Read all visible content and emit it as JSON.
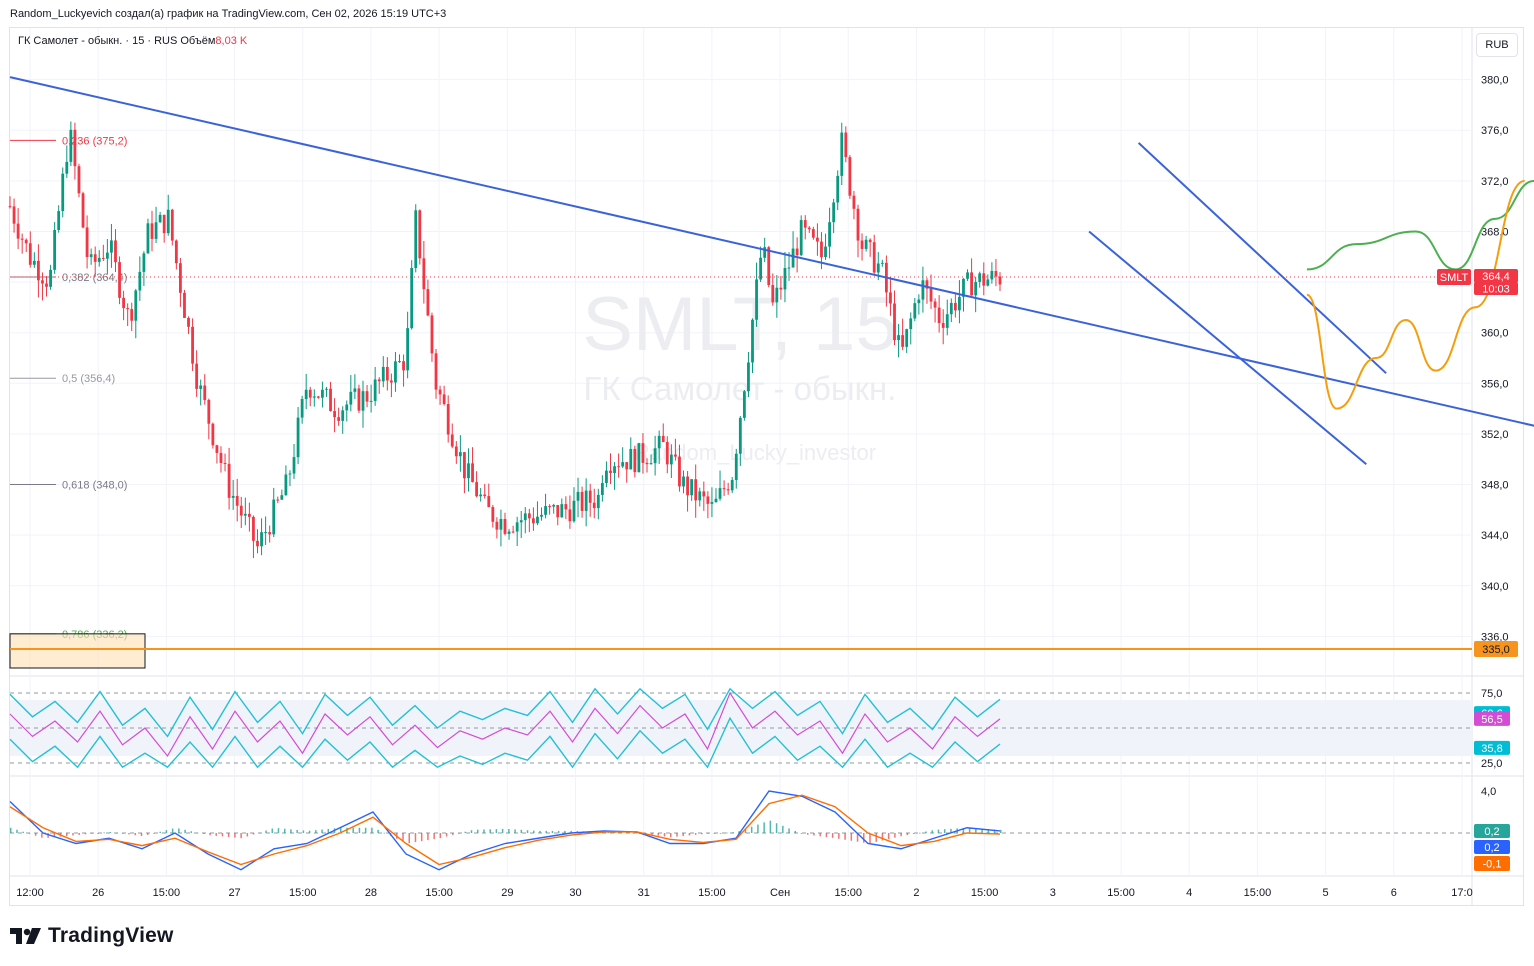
{
  "caption": "Random_Luckyevich создал(а) график на TradingView.com, Сен 02, 2026 15:19 UTC+3",
  "legend": {
    "symbol": "ГК Самолет - обыкн. · 15 · RUS",
    "volume_label": "Объём",
    "volume_value": "8,03 K"
  },
  "currency_button": "RUB",
  "brand": "TradingView",
  "watermark": {
    "ticker": "SMLT, 15",
    "name": "ГК Самолет - обыкн.",
    "author": "Random_Lucky_investor"
  },
  "colors": {
    "up": "#089981",
    "down": "#f23645",
    "trendline": "#3b63d9",
    "support": "#f7941d",
    "green_path": "#4caf50",
    "orange_path": "#f59e0b",
    "rsi": "#d44bd6",
    "channel": "#22c1d6",
    "macd": "#2962ff",
    "signal": "#ff6d00"
  },
  "chart_data": [
    {
      "type": "candlestick",
      "title": "ГК Самолет - обыкн. · 15 · RUS",
      "ylim": [
        333.5,
        382.5
      ],
      "y_ticks": [
        "380,0",
        "376,0",
        "372,0",
        "368,0",
        "364,0",
        "360,0",
        "356,0",
        "352,0",
        "348,0",
        "344,0",
        "340,0",
        "336,0"
      ],
      "x_ticks": [
        "12:00",
        "26",
        "15:00",
        "27",
        "15:00",
        "28",
        "15:00",
        "29",
        "30",
        "31",
        "15:00",
        "Сен",
        "15:00",
        "2",
        "15:00",
        "3",
        "15:00",
        "4",
        "15:00",
        "5",
        "6",
        "17:0"
      ],
      "price_path": [
        [
          0,
          370
        ],
        [
          0.02,
          366
        ],
        [
          0.04,
          364
        ],
        [
          0.06,
          376
        ],
        [
          0.08,
          365
        ],
        [
          0.1,
          367
        ],
        [
          0.12,
          361
        ],
        [
          0.14,
          368
        ],
        [
          0.16,
          369
        ],
        [
          0.19,
          356
        ],
        [
          0.22,
          348
        ],
        [
          0.25,
          343
        ],
        [
          0.28,
          348
        ],
        [
          0.3,
          356
        ],
        [
          0.33,
          354
        ],
        [
          0.36,
          355
        ],
        [
          0.4,
          358
        ],
        [
          0.41,
          369
        ],
        [
          0.43,
          356
        ],
        [
          0.46,
          349
        ],
        [
          0.475,
          347
        ],
        [
          0.48,
          346
        ],
        [
          0.5,
          345
        ],
        [
          0.53,
          345.5
        ],
        [
          0.56,
          346
        ],
        [
          0.595,
          347
        ],
        [
          0.6,
          350
        ],
        [
          0.63,
          350
        ],
        [
          0.66,
          351
        ],
        [
          0.68,
          348
        ],
        [
          0.71,
          346
        ],
        [
          0.73,
          349
        ],
        [
          0.76,
          367
        ],
        [
          0.77,
          362
        ],
        [
          0.8,
          368
        ],
        [
          0.82,
          366
        ],
        [
          0.84,
          375
        ],
        [
          0.86,
          367
        ],
        [
          0.88,
          365
        ],
        [
          0.9,
          358
        ],
        [
          0.92,
          364
        ],
        [
          0.94,
          361
        ],
        [
          0.96,
          363
        ],
        [
          0.97,
          364
        ],
        [
          1,
          364.4
        ]
      ],
      "last_price": "364,4",
      "countdown": "10:03",
      "ticker_tag": "SMLT",
      "fibonacci": [
        {
          "label": "0,236 (375,2)",
          "value": 375.2,
          "color": "#f23645"
        },
        {
          "label": "0,382 (364,4)",
          "value": 364.4,
          "color": "#787b86"
        },
        {
          "label": "0,5 (356,4)",
          "value": 356.4,
          "color": "#9598a1"
        },
        {
          "label": "0,618 (348,0)",
          "value": 348.0,
          "color": "#787b86"
        },
        {
          "label": "0,786 (336,2)",
          "value": 336.2,
          "color": "#4caf50"
        }
      ],
      "support_level": {
        "value": 335.0,
        "label": "335,0"
      },
      "trendlines": [
        {
          "from": [
            0,
            380.2
          ],
          "to": [
            1.95,
            345.3
          ]
        },
        {
          "from": [
            1.14,
            375.0
          ],
          "to": [
            1.39,
            356.8
          ]
        },
        {
          "from": [
            1.09,
            368.0
          ],
          "to": [
            1.37,
            349.6
          ]
        }
      ],
      "forecast_paths": [
        {
          "name": "",
          "color": "green",
          "points": [
            [
              1.31,
              365
            ],
            [
              1.36,
              367
            ],
            [
              1.42,
              368
            ],
            [
              1.46,
              365
            ],
            [
              1.5,
              369
            ],
            [
              1.54,
              372
            ]
          ]
        },
        {
          "name": "",
          "color": "orange",
          "points": [
            [
              1.31,
              363
            ],
            [
              1.34,
              354
            ],
            [
              1.38,
              358
            ],
            [
              1.41,
              361
            ],
            [
              1.44,
              357
            ],
            [
              1.48,
              362
            ],
            [
              1.53,
              372
            ]
          ]
        }
      ]
    },
    {
      "type": "line",
      "title": "",
      "ylim": [
        20,
        80
      ],
      "y_ticks": [
        "75,0",
        "25,0"
      ],
      "labels": {
        "upper": "60,6",
        "rsi": "56,5",
        "lower": "35,8"
      },
      "series": [
        {
          "name": "",
          "values": [
            60,
            44,
            55,
            40,
            62,
            38,
            50,
            30,
            58,
            35,
            62,
            40,
            55,
            32,
            60,
            45,
            58,
            38,
            52,
            36,
            48,
            42,
            50,
            45,
            62,
            40,
            64,
            46,
            66,
            50,
            60,
            35,
            75,
            50,
            62,
            45,
            55,
            32,
            60,
            40,
            50,
            35,
            58,
            44,
            56.5
          ]
        }
      ]
    },
    {
      "type": "line",
      "title": "",
      "y_ticks": [
        "4,0"
      ],
      "labels": {
        "hist": "0,2",
        "macd": "0,2",
        "signal": "-0,1"
      },
      "series": [
        {
          "name": "",
          "values": [
            3,
            0,
            -1,
            -0.5,
            -1.5,
            0,
            -2,
            -3.5,
            -1.5,
            -1,
            0.5,
            2,
            -2,
            -3.5,
            -2,
            -1,
            -0.5,
            0,
            0.2,
            0.1,
            -1,
            -1,
            -0.5,
            4,
            3.5,
            2,
            -1,
            -1.5,
            -0.5,
            0.5,
            0.2
          ]
        },
        {
          "name": "",
          "values": [
            2.5,
            0.5,
            -0.8,
            -0.6,
            -1.2,
            -0.5,
            -1.8,
            -3,
            -2,
            -1.2,
            0,
            1.5,
            -1,
            -3,
            -2.3,
            -1.4,
            -0.7,
            -0.2,
            0.1,
            0.1,
            -0.6,
            -0.9,
            -0.6,
            2.8,
            3.6,
            2.5,
            0,
            -1.2,
            -0.8,
            0,
            -0.1
          ]
        }
      ]
    }
  ]
}
